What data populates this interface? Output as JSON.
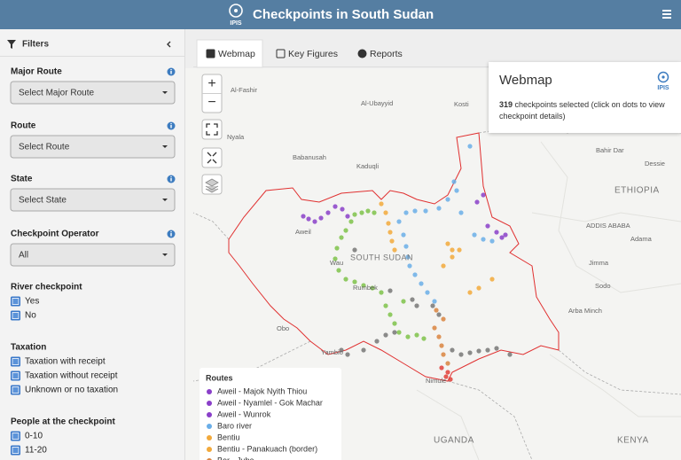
{
  "header": {
    "logo": "IPIS",
    "title": "Checkpoints in South Sudan"
  },
  "sidebar": {
    "title": "Filters",
    "selects": [
      {
        "label": "Major Route",
        "value": "Select Major Route"
      },
      {
        "label": "Route",
        "value": "Select Route"
      },
      {
        "label": "State",
        "value": "Select State"
      },
      {
        "label": "Checkpoint Operator",
        "value": "All"
      }
    ],
    "checkbox_groups": [
      {
        "label": "River checkpoint",
        "options": [
          "Yes",
          "No"
        ]
      },
      {
        "label": "Taxation",
        "options": [
          "Taxation with receipt",
          "Taxation without receipt",
          "Unknown or no taxation"
        ]
      },
      {
        "label": "People at the checkpoint",
        "options": [
          "0-10",
          "11-20"
        ]
      }
    ]
  },
  "tabs": [
    "Webmap",
    "Key Figures",
    "Reports"
  ],
  "map": {
    "zoom_in": "+",
    "zoom_out": "−",
    "labels": [
      "Al-Fashir",
      "Al-Ubayyid",
      "Kosti",
      "Nyala",
      "Babanusah",
      "Kaduqli",
      "Bahir Dar",
      "Dessie",
      "ADDIS ABABA",
      "Adama",
      "Jimma",
      "Sodo",
      "Arba Minch",
      "Aweil",
      "Wau",
      "Rumbek",
      "Obo",
      "Yambio",
      "Nimule"
    ],
    "countries": [
      "SOUTH SUDAN",
      "ETHIOPIA",
      "UGANDA",
      "KENYA"
    ]
  },
  "info_box": {
    "title": "Webmap",
    "logo": "IPIS",
    "count": "319",
    "text": "checkpoints selected (click on dots to view checkpoint details)"
  },
  "legend": {
    "title": "Routes",
    "items": [
      {
        "name": "Aweil - Majok Nyith Thiou",
        "color": "#8a3fc9"
      },
      {
        "name": "Aweil - Nyamlel - Gok Machar",
        "color": "#8a3fc9"
      },
      {
        "name": "Aweil - Wunrok",
        "color": "#8a3fc9"
      },
      {
        "name": "Baro river",
        "color": "#6aaee8"
      },
      {
        "name": "Bentiu",
        "color": "#f2a93b"
      },
      {
        "name": "Bentiu - Panakuach (border)",
        "color": "#f2a93b"
      },
      {
        "name": "Bor - Juba",
        "color": "#d9843f"
      }
    ]
  }
}
